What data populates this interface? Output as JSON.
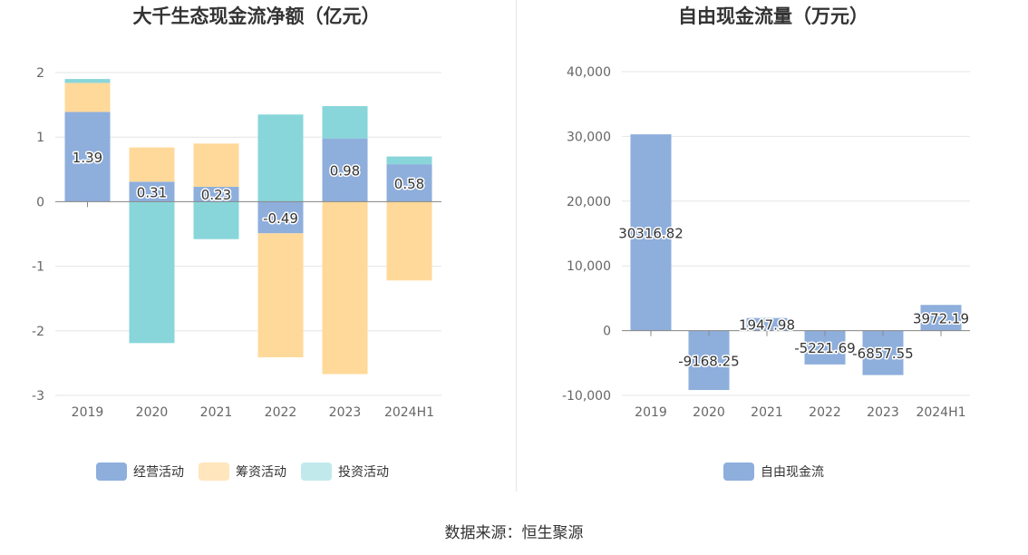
{
  "source_label": "数据来源：恒生聚源",
  "colors": {
    "operating": "#8eaedc",
    "financing": "#ffd99a",
    "investing": "#88d6da",
    "free_cash": "#8eaedc",
    "axis": "#999999",
    "grid": "#e6e6e6"
  },
  "chart_data": [
    {
      "type": "bar",
      "stacked": true,
      "title": "大千生态现金流净额（亿元）",
      "categories": [
        "2019",
        "2020",
        "2021",
        "2022",
        "2023",
        "2024H1"
      ],
      "ylim": [
        -3,
        2
      ],
      "yticks": [
        2,
        1,
        0,
        -1,
        -2,
        -3
      ],
      "grid": true,
      "legend_position": "bottom",
      "series": [
        {
          "name": "经营活动",
          "key": "operating",
          "values": [
            1.39,
            0.31,
            0.23,
            -0.49,
            0.98,
            0.58
          ],
          "labels": [
            "1.39",
            "0.31",
            "0.23",
            "-0.49",
            "0.98",
            "0.58"
          ]
        },
        {
          "name": "筹资活动",
          "key": "financing",
          "values": [
            0.45,
            0.53,
            0.67,
            -1.92,
            -2.67,
            -1.22
          ]
        },
        {
          "name": "投资活动",
          "key": "investing",
          "values": [
            0.06,
            -2.19,
            -0.58,
            1.35,
            0.5,
            0.12
          ]
        }
      ]
    },
    {
      "type": "bar",
      "title": "自由现金流量（万元）",
      "categories": [
        "2019",
        "2020",
        "2021",
        "2022",
        "2023",
        "2024H1"
      ],
      "ylim": [
        -10000,
        40000
      ],
      "yticks": [
        40000,
        30000,
        20000,
        10000,
        0,
        -10000
      ],
      "ytick_labels": [
        "40,000",
        "30,000",
        "20,000",
        "10,000",
        "0",
        "-10,000"
      ],
      "grid": true,
      "legend_position": "bottom",
      "series": [
        {
          "name": "自由现金流",
          "key": "free_cash",
          "values": [
            30316.82,
            -9168.25,
            1947.98,
            -5221.69,
            -6857.55,
            3972.19
          ],
          "labels": [
            "30316.82",
            "-9168.25",
            "1947.98",
            "-5221.69",
            "-6857.55",
            "3972.19"
          ]
        }
      ]
    }
  ]
}
